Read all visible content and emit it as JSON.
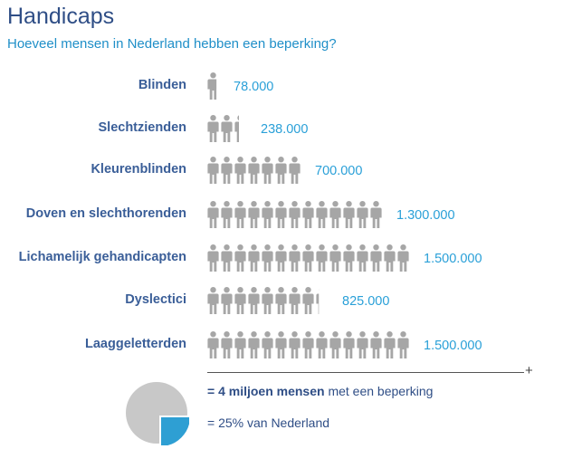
{
  "title": "Handicaps",
  "subtitle": "Hoeveel mensen in Nederland hebben een beperking?",
  "chart_data": {
    "type": "pictograph",
    "categories": [
      "Blinden",
      "Slechtzienden",
      "Kleurenblinden",
      "Doven en slechthorenden",
      "Lichamelijk gehandicapten",
      "Dyslectici",
      "Laaggeletterden"
    ],
    "values": [
      78000,
      238000,
      700000,
      1300000,
      1500000,
      825000,
      1500000
    ],
    "value_labels": [
      "78.000",
      "238.000",
      "700.000",
      "1.300.000",
      "1.500.000",
      "825.000",
      "1.500.000"
    ],
    "unit_per_icon": 100000
  },
  "legend": {
    "plus": "+",
    "line1_bold": "= 4 miljoen mensen",
    "line1_rest": " met een beperking",
    "line2": "= 25% van Nederland"
  },
  "pie": {
    "share": 0.25,
    "main_color": "#c8c8c8",
    "slice_color": "#2e9fd3"
  },
  "colors": {
    "figure": "#a6a6a6",
    "title": "#2f4e86",
    "subtitle": "#1f8fc8",
    "value": "#2aa0d8"
  }
}
